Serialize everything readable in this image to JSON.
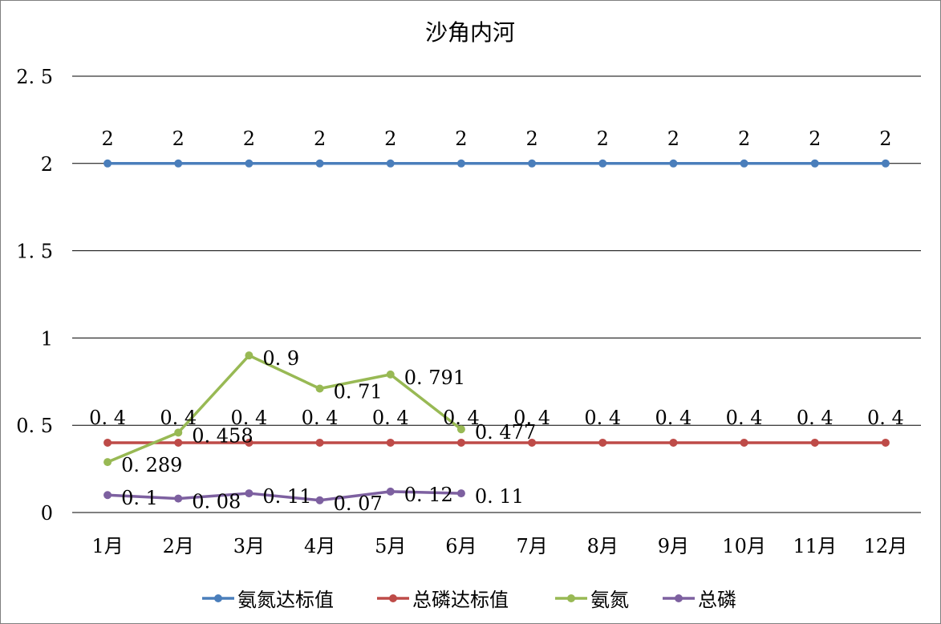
{
  "chart_data": {
    "type": "line",
    "title": "沙角内河",
    "xlabel": "",
    "ylabel": "",
    "ylim": [
      0,
      2.5
    ],
    "yticks": [
      0,
      0.5,
      1,
      1.5,
      2,
      2.5
    ],
    "ytick_labels": [
      "0",
      "0. 5",
      "1",
      "1. 5",
      "2",
      "2. 5"
    ],
    "grid": true,
    "legend_position": "bottom",
    "categories": [
      "1月",
      "2月",
      "3月",
      "4月",
      "5月",
      "6月",
      "7月",
      "8月",
      "9月",
      "10月",
      "11月",
      "12月"
    ],
    "series": [
      {
        "name": "氨氮达标值",
        "color": "#4a7ebb",
        "values": [
          2,
          2,
          2,
          2,
          2,
          2,
          2,
          2,
          2,
          2,
          2,
          2
        ],
        "label_pos": "above"
      },
      {
        "name": "总磷达标值",
        "color": "#be4b48",
        "values": [
          0.4,
          0.4,
          0.4,
          0.4,
          0.4,
          0.4,
          0.4,
          0.4,
          0.4,
          0.4,
          0.4,
          0.4
        ],
        "label_pos": "above"
      },
      {
        "name": "氨氮",
        "color": "#98b954",
        "values": [
          0.289,
          0.458,
          0.9,
          0.71,
          0.791,
          0.477,
          null,
          null,
          null,
          null,
          null,
          null
        ],
        "label_pos": "right"
      },
      {
        "name": "总磷",
        "color": "#7d60a0",
        "values": [
          0.1,
          0.08,
          0.11,
          0.07,
          0.12,
          0.11,
          null,
          null,
          null,
          null,
          null,
          null
        ],
        "label_pos": "right"
      }
    ]
  }
}
